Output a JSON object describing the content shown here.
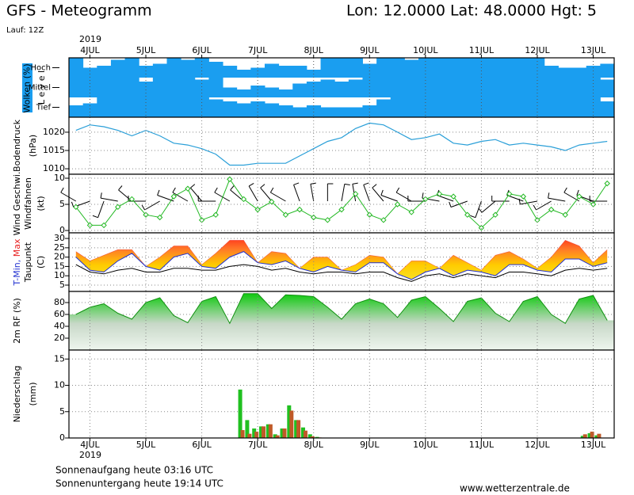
{
  "header": {
    "title": "GFS - Meteogramm",
    "location": "Lon: 12.0000 Lat: 48.0000 Hgt: 5",
    "run": "Lauf: 12Z"
  },
  "time_axis": {
    "year": "2019",
    "xlim": [
      -9,
      225
    ],
    "xticks": [
      {
        "value": 0,
        "label": "4JUL"
      },
      {
        "value": 24,
        "label": "5JUL"
      },
      {
        "value": 48,
        "label": "6JUL"
      },
      {
        "value": 72,
        "label": "7JUL"
      },
      {
        "value": 96,
        "label": "8JUL"
      },
      {
        "value": 120,
        "label": "9JUL"
      },
      {
        "value": 144,
        "label": "10JUL"
      },
      {
        "value": 168,
        "label": "11JUL"
      },
      {
        "value": 192,
        "label": "12JUL"
      },
      {
        "value": 216,
        "label": "13JUL"
      }
    ]
  },
  "chart_data": [
    {
      "type": "cloud",
      "ylabel": "Wolken (%)",
      "level_label": "L e v e l",
      "color": "#1a9ef0",
      "categories": [
        "Hoch",
        "Mittel",
        "Tief"
      ],
      "x": [
        -6,
        0,
        6,
        12,
        18,
        24,
        30,
        36,
        42,
        48,
        54,
        60,
        66,
        72,
        78,
        84,
        90,
        96,
        102,
        108,
        114,
        120,
        126,
        132,
        138,
        144,
        150,
        156,
        162,
        168,
        174,
        180,
        186,
        192,
        198,
        204,
        210,
        216,
        222
      ],
      "series": [
        {
          "values": [
            100,
            50,
            60,
            90,
            100,
            60,
            70,
            100,
            90,
            100,
            80,
            60,
            40,
            50,
            70,
            60,
            60,
            40,
            100,
            100,
            100,
            70,
            100,
            100,
            90,
            100,
            100,
            100,
            100,
            100,
            100,
            100,
            100,
            100,
            60,
            50,
            50,
            60,
            70
          ]
        },
        {
          "values": [
            100,
            100,
            100,
            100,
            100,
            80,
            100,
            100,
            100,
            90,
            100,
            50,
            40,
            60,
            50,
            40,
            70,
            80,
            90,
            80,
            90,
            100,
            100,
            100,
            100,
            100,
            100,
            100,
            100,
            100,
            100,
            100,
            100,
            100,
            100,
            100,
            100,
            100,
            90
          ]
        },
        {
          "values": [
            60,
            70,
            100,
            100,
            100,
            100,
            100,
            100,
            100,
            100,
            90,
            80,
            70,
            80,
            70,
            60,
            50,
            60,
            50,
            50,
            50,
            60,
            90,
            100,
            100,
            100,
            100,
            100,
            100,
            100,
            100,
            100,
            100,
            100,
            100,
            100,
            100,
            100,
            80
          ]
        }
      ]
    },
    {
      "type": "line",
      "ylabel": "Bodendruck",
      "unit": "(hPa)",
      "color": "#2a9fd8",
      "grid": true,
      "ylim": [
        1008.5,
        1024.1
      ],
      "yticks": [
        1010,
        1015,
        1020
      ],
      "x": [
        -6,
        0,
        6,
        12,
        18,
        24,
        30,
        36,
        42,
        48,
        54,
        60,
        66,
        72,
        78,
        84,
        90,
        96,
        102,
        108,
        114,
        120,
        126,
        132,
        138,
        144,
        150,
        156,
        162,
        168,
        174,
        180,
        186,
        192,
        198,
        204,
        210,
        216,
        222
      ],
      "values": [
        1020.5,
        1022,
        1021.5,
        1020.5,
        1019,
        1020.5,
        1019,
        1017,
        1016.5,
        1015.5,
        1014,
        1011,
        1011,
        1011.5,
        1011.5,
        1011.5,
        1013.5,
        1015.5,
        1017.5,
        1018.5,
        1021,
        1022.5,
        1022,
        1020,
        1018,
        1018.5,
        1019.5,
        1017,
        1016.5,
        1017.5,
        1018,
        1016.5,
        1017,
        1016.5,
        1016,
        1015,
        1016.5,
        1017,
        1017.5
      ]
    },
    {
      "type": "wind",
      "unit": "(kt)",
      "grid": true,
      "ylim": [
        -0.45,
        10.76
      ],
      "yticks": [
        0,
        5,
        10
      ],
      "x": [
        -6,
        0,
        6,
        12,
        18,
        24,
        30,
        36,
        42,
        48,
        54,
        60,
        66,
        72,
        78,
        84,
        90,
        96,
        102,
        108,
        114,
        120,
        126,
        132,
        138,
        144,
        150,
        156,
        162,
        168,
        174,
        180,
        186,
        192,
        198,
        204,
        210,
        216,
        222
      ],
      "series": [
        {
          "name": "Wind Geschwi.",
          "color": "#22b822",
          "values": [
            4.5,
            1,
            1,
            4.5,
            6,
            3,
            2.5,
            6.5,
            8,
            2,
            3,
            9.8,
            6,
            4,
            5.5,
            3,
            4,
            2.5,
            2,
            4,
            7,
            3,
            2,
            5,
            3.5,
            6,
            7,
            6.5,
            3,
            0.5,
            3,
            7,
            6.5,
            2,
            4,
            3,
            6.5,
            5,
            9
          ]
        },
        {
          "name": "Windfahnen",
          "color": "#000000",
          "values": [
            300,
            250,
            200,
            280,
            310,
            270,
            240,
            290,
            300,
            320,
            270,
            300,
            310,
            330,
            320,
            300,
            340,
            350,
            0,
            10,
            350,
            340,
            320,
            290,
            300,
            270,
            280,
            290,
            250,
            200,
            230,
            270,
            290,
            260,
            240,
            280,
            300,
            290,
            270
          ]
        }
      ]
    },
    {
      "type": "band",
      "unit": "(C)",
      "grid": true,
      "ylim": [
        1.6,
        33
      ],
      "yticks": [
        5,
        10,
        15,
        20,
        25,
        30
      ],
      "x": [
        -6,
        0,
        6,
        12,
        18,
        24,
        30,
        36,
        42,
        48,
        54,
        60,
        66,
        72,
        78,
        84,
        90,
        96,
        102,
        108,
        114,
        120,
        126,
        132,
        138,
        144,
        150,
        156,
        162,
        168,
        174,
        180,
        186,
        192,
        198,
        204,
        210,
        216,
        222
      ],
      "series": [
        {
          "name": "T-Min,",
          "color": "#2030d0",
          "values": [
            20,
            13,
            12,
            18,
            22,
            15,
            13,
            20,
            22,
            15,
            14,
            20,
            23,
            17,
            16,
            18,
            14,
            12,
            15,
            13,
            12,
            17,
            17,
            11,
            8,
            12,
            14,
            10,
            13,
            12,
            10,
            16,
            16,
            13,
            12,
            19,
            19,
            15,
            17
          ]
        },
        {
          "name": "Max",
          "color": "#e82020",
          "values": [
            23,
            18,
            21,
            24,
            24,
            15,
            20,
            26,
            26,
            16,
            22,
            29,
            29,
            17,
            23,
            22,
            14,
            20,
            20,
            13,
            16,
            21,
            20,
            11,
            18,
            18,
            14,
            21,
            17,
            13,
            21,
            23,
            19,
            14,
            20,
            29,
            26,
            17,
            24
          ]
        },
        {
          "name": "Taupunkt",
          "color": "#000000",
          "values": [
            16,
            12,
            11,
            13,
            14,
            12,
            12,
            14,
            14,
            13,
            13,
            15,
            16,
            15,
            13,
            14,
            12,
            11,
            12,
            12,
            11,
            12,
            12,
            9,
            7,
            10,
            11,
            9,
            11,
            10,
            9,
            12,
            12,
            11,
            10,
            13,
            14,
            13,
            14
          ]
        }
      ]
    },
    {
      "type": "area",
      "ylabel": "2m RF (%)",
      "color": "#10c010",
      "grid": true,
      "ylim": [
        0,
        98.7
      ],
      "yticks": [
        20,
        40,
        60,
        80
      ],
      "x": [
        -6,
        0,
        6,
        12,
        18,
        24,
        30,
        36,
        42,
        48,
        54,
        60,
        66,
        72,
        78,
        84,
        90,
        96,
        102,
        108,
        114,
        120,
        126,
        132,
        138,
        144,
        150,
        156,
        162,
        168,
        174,
        180,
        186,
        192,
        198,
        204,
        210,
        216,
        222
      ],
      "values": [
        60,
        72,
        78,
        62,
        52,
        80,
        88,
        58,
        46,
        82,
        90,
        45,
        95,
        95,
        70,
        93,
        92,
        90,
        72,
        52,
        78,
        86,
        78,
        55,
        84,
        90,
        70,
        48,
        82,
        88,
        62,
        48,
        82,
        90,
        60,
        45,
        86,
        92,
        50
      ]
    },
    {
      "type": "bar",
      "ylabel": "Niederschlag",
      "unit": "(mm)",
      "grid": true,
      "ylim": [
        0,
        16.7
      ],
      "yticks": [
        0,
        5,
        10,
        15
      ],
      "x": [
        65,
        68,
        71,
        74,
        77,
        80,
        83,
        86,
        89,
        92,
        95,
        98,
        212,
        215,
        218
      ],
      "series": [
        {
          "color": "#20c020",
          "values": [
            9.2,
            3.4,
            1.8,
            2.2,
            2.6,
            0.7,
            1.8,
            6.2,
            3.4,
            2.0,
            0.7,
            0.2,
            0.4,
            0.9,
            0.5
          ]
        },
        {
          "color": "#c05a28",
          "values": [
            1.5,
            0.8,
            1.2,
            2.2,
            2.6,
            0.5,
            1.8,
            5.2,
            3.4,
            1.4,
            0.3,
            0.1,
            0.7,
            1.2,
            0.8
          ]
        }
      ]
    }
  ],
  "footer": {
    "sunrise": "Sonnenaufgang heute 03:16 UTC",
    "sunset": "Sonnenuntergang heute 19:14 UTC",
    "site": "www.wetterzentrale.de"
  }
}
